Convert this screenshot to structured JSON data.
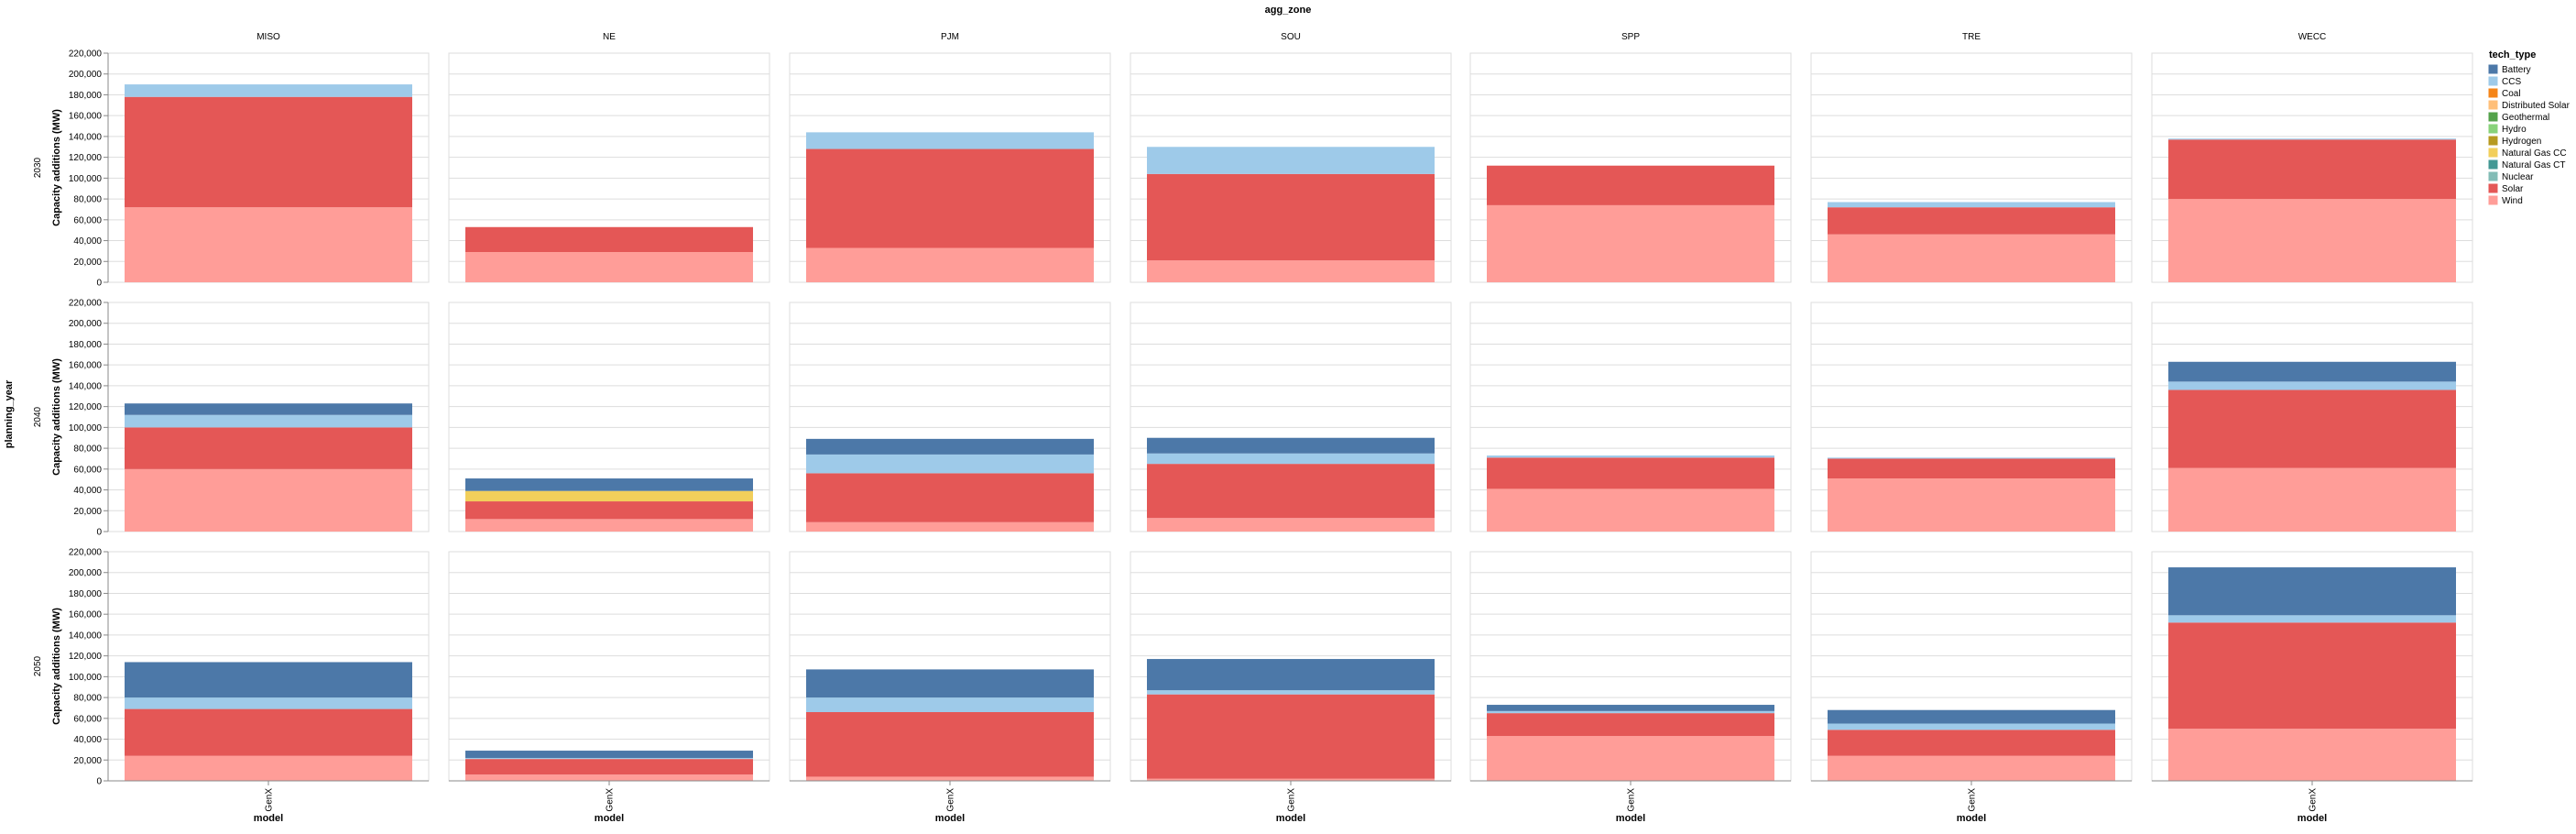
{
  "chart_data": {
    "type": "bar",
    "stacked": true,
    "title": "agg_zone",
    "row_title": "planning_year",
    "ylabel": "Capacity additions (MW)",
    "xlabel": "model",
    "columns": [
      "MISO",
      "NE",
      "PJM",
      "SOU",
      "SPP",
      "TRE",
      "WECC"
    ],
    "rows": [
      "2030",
      "2040",
      "2050"
    ],
    "categories": [
      "GenX"
    ],
    "ylim": [
      0,
      220000
    ],
    "yticks": [
      0,
      20000,
      40000,
      60000,
      80000,
      100000,
      120000,
      140000,
      160000,
      180000,
      200000,
      220000
    ],
    "ytick_labels": [
      "0",
      "20,000",
      "40,000",
      "60,000",
      "80,000",
      "100,000",
      "120,000",
      "140,000",
      "160,000",
      "180,000",
      "200,000",
      "220,000"
    ],
    "grid": true,
    "legend": {
      "title": "tech_type",
      "position": "right",
      "entries": [
        {
          "name": "Battery",
          "color": "#4c78a8"
        },
        {
          "name": "CCS",
          "color": "#9ecae9"
        },
        {
          "name": "Coal",
          "color": "#f58518"
        },
        {
          "name": "Distributed Solar",
          "color": "#ffbf79"
        },
        {
          "name": "Geothermal",
          "color": "#54a24b"
        },
        {
          "name": "Hydro",
          "color": "#88d27a"
        },
        {
          "name": "Hydrogen",
          "color": "#b79a20"
        },
        {
          "name": "Natural Gas CC",
          "color": "#f2cf5b"
        },
        {
          "name": "Natural Gas CT",
          "color": "#439894"
        },
        {
          "name": "Nuclear",
          "color": "#83bcb6"
        },
        {
          "name": "Solar",
          "color": "#e45756"
        },
        {
          "name": "Wind",
          "color": "#ff9d98"
        }
      ]
    },
    "facets": [
      {
        "row": "2030",
        "col": "MISO",
        "stack": [
          {
            "tech": "Wind",
            "value": 72000
          },
          {
            "tech": "Solar",
            "value": 106000
          },
          {
            "tech": "CCS",
            "value": 12000
          }
        ]
      },
      {
        "row": "2030",
        "col": "NE",
        "stack": [
          {
            "tech": "Wind",
            "value": 29000
          },
          {
            "tech": "Solar",
            "value": 24000
          }
        ]
      },
      {
        "row": "2030",
        "col": "PJM",
        "stack": [
          {
            "tech": "Wind",
            "value": 33000
          },
          {
            "tech": "Solar",
            "value": 95000
          },
          {
            "tech": "CCS",
            "value": 16000
          }
        ]
      },
      {
        "row": "2030",
        "col": "SOU",
        "stack": [
          {
            "tech": "Wind",
            "value": 21000
          },
          {
            "tech": "Solar",
            "value": 83000
          },
          {
            "tech": "CCS",
            "value": 26000
          }
        ]
      },
      {
        "row": "2030",
        "col": "SPP",
        "stack": [
          {
            "tech": "Wind",
            "value": 74000
          },
          {
            "tech": "Solar",
            "value": 38000
          }
        ]
      },
      {
        "row": "2030",
        "col": "TRE",
        "stack": [
          {
            "tech": "Wind",
            "value": 46000
          },
          {
            "tech": "Solar",
            "value": 26000
          },
          {
            "tech": "CCS",
            "value": 5000
          }
        ]
      },
      {
        "row": "2030",
        "col": "WECC",
        "stack": [
          {
            "tech": "Wind",
            "value": 80000
          },
          {
            "tech": "Solar",
            "value": 57000
          },
          {
            "tech": "CCS",
            "value": 1000
          }
        ]
      },
      {
        "row": "2040",
        "col": "MISO",
        "stack": [
          {
            "tech": "Wind",
            "value": 60000
          },
          {
            "tech": "Solar",
            "value": 40000
          },
          {
            "tech": "CCS",
            "value": 12000
          },
          {
            "tech": "Battery",
            "value": 11000
          }
        ]
      },
      {
        "row": "2040",
        "col": "NE",
        "stack": [
          {
            "tech": "Wind",
            "value": 12000
          },
          {
            "tech": "Solar",
            "value": 17000
          },
          {
            "tech": "Natural Gas CC",
            "value": 10000
          },
          {
            "tech": "Battery",
            "value": 12000
          }
        ]
      },
      {
        "row": "2040",
        "col": "PJM",
        "stack": [
          {
            "tech": "Wind",
            "value": 9000
          },
          {
            "tech": "Solar",
            "value": 47000
          },
          {
            "tech": "CCS",
            "value": 18000
          },
          {
            "tech": "Battery",
            "value": 15000
          }
        ]
      },
      {
        "row": "2040",
        "col": "SOU",
        "stack": [
          {
            "tech": "Wind",
            "value": 13000
          },
          {
            "tech": "Solar",
            "value": 52000
          },
          {
            "tech": "CCS",
            "value": 10000
          },
          {
            "tech": "Battery",
            "value": 15000
          }
        ]
      },
      {
        "row": "2040",
        "col": "SPP",
        "stack": [
          {
            "tech": "Wind",
            "value": 41000
          },
          {
            "tech": "Solar",
            "value": 30000
          },
          {
            "tech": "CCS",
            "value": 2000
          }
        ]
      },
      {
        "row": "2040",
        "col": "TRE",
        "stack": [
          {
            "tech": "Wind",
            "value": 51000
          },
          {
            "tech": "Solar",
            "value": 19000
          },
          {
            "tech": "CCS",
            "value": 1000
          }
        ]
      },
      {
        "row": "2040",
        "col": "WECC",
        "stack": [
          {
            "tech": "Wind",
            "value": 61000
          },
          {
            "tech": "Solar",
            "value": 75000
          },
          {
            "tech": "CCS",
            "value": 8000
          },
          {
            "tech": "Battery",
            "value": 19000
          }
        ]
      },
      {
        "row": "2050",
        "col": "MISO",
        "stack": [
          {
            "tech": "Wind",
            "value": 24000
          },
          {
            "tech": "Solar",
            "value": 45000
          },
          {
            "tech": "CCS",
            "value": 11000
          },
          {
            "tech": "Battery",
            "value": 34000
          }
        ]
      },
      {
        "row": "2050",
        "col": "NE",
        "stack": [
          {
            "tech": "Wind",
            "value": 6000
          },
          {
            "tech": "Solar",
            "value": 15000
          },
          {
            "tech": "CCS",
            "value": 1000
          },
          {
            "tech": "Battery",
            "value": 7000
          }
        ]
      },
      {
        "row": "2050",
        "col": "PJM",
        "stack": [
          {
            "tech": "Wind",
            "value": 4000
          },
          {
            "tech": "Solar",
            "value": 62000
          },
          {
            "tech": "CCS",
            "value": 14000
          },
          {
            "tech": "Battery",
            "value": 27000
          }
        ]
      },
      {
        "row": "2050",
        "col": "SOU",
        "stack": [
          {
            "tech": "Wind",
            "value": 2000
          },
          {
            "tech": "Solar",
            "value": 81000
          },
          {
            "tech": "CCS",
            "value": 4000
          },
          {
            "tech": "Battery",
            "value": 30000
          }
        ]
      },
      {
        "row": "2050",
        "col": "SPP",
        "stack": [
          {
            "tech": "Wind",
            "value": 43000
          },
          {
            "tech": "Solar",
            "value": 22000
          },
          {
            "tech": "CCS",
            "value": 2000
          },
          {
            "tech": "Battery",
            "value": 6000
          }
        ]
      },
      {
        "row": "2050",
        "col": "TRE",
        "stack": [
          {
            "tech": "Wind",
            "value": 24000
          },
          {
            "tech": "Solar",
            "value": 25000
          },
          {
            "tech": "CCS",
            "value": 6000
          },
          {
            "tech": "Battery",
            "value": 13000
          }
        ]
      },
      {
        "row": "2050",
        "col": "WECC",
        "stack": [
          {
            "tech": "Wind",
            "value": 50000
          },
          {
            "tech": "Solar",
            "value": 102000
          },
          {
            "tech": "CCS",
            "value": 7000
          },
          {
            "tech": "Battery",
            "value": 46000
          }
        ]
      }
    ]
  }
}
